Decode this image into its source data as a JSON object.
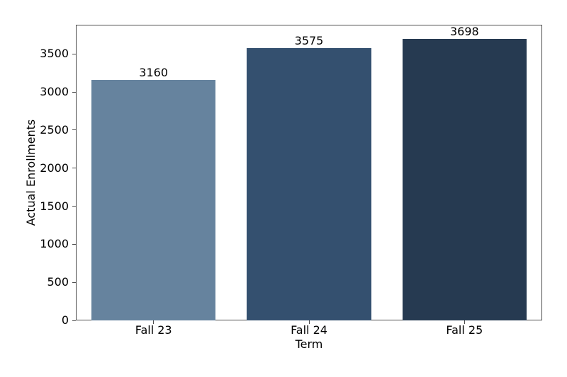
{
  "figure": {
    "background": "#ffffff",
    "spine_color": "#4c4c4c",
    "text_color": "#000000"
  },
  "chart_data": {
    "type": "bar",
    "categories": [
      "Fall 23",
      "Fall 24",
      "Fall 25"
    ],
    "values": [
      3160,
      3575,
      3698
    ],
    "bar_value_labels": [
      "3160",
      "3575",
      "3698"
    ],
    "bar_colors": [
      "#66839E",
      "#34506F",
      "#263A51"
    ],
    "xlabel": "Term",
    "ylabel": "Actual Enrollments",
    "ylim": [
      0,
      3883
    ],
    "yticks": [
      0,
      500,
      1000,
      1500,
      2000,
      2500,
      3000,
      3500
    ],
    "bar_width_fraction": 0.8,
    "grid": false,
    "legend": false
  }
}
